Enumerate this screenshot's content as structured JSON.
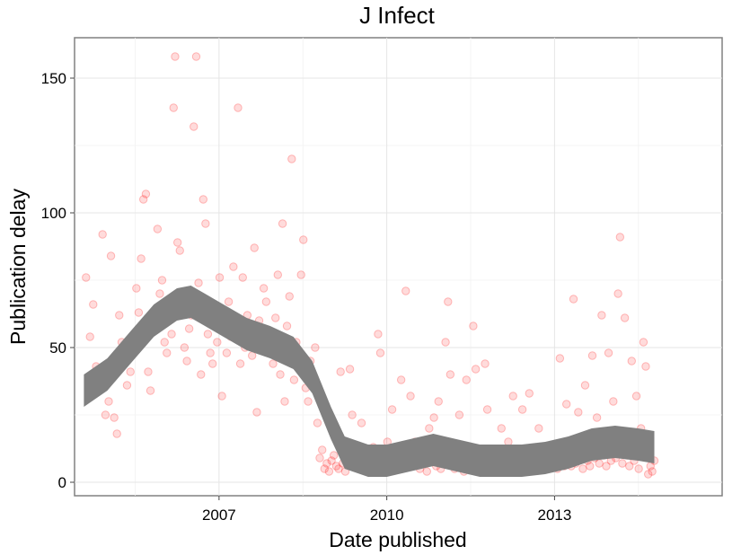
{
  "chart_data": {
    "type": "scatter",
    "title": "J Infect",
    "xlabel": "Date published",
    "ylabel": "Publication delay",
    "xlim": [
      "2004-06-01",
      "2016-01-01"
    ],
    "ylim": [
      -5,
      165
    ],
    "x_ticks": [
      {
        "label": "2007",
        "value": "2007-01-01"
      },
      {
        "label": "2010",
        "value": "2010-01-01"
      },
      {
        "label": "2013",
        "value": "2013-01-01"
      }
    ],
    "y_ticks": [
      {
        "label": "0",
        "value": 0
      },
      {
        "label": "50",
        "value": 50
      },
      {
        "label": "100",
        "value": 100
      },
      {
        "label": "150",
        "value": 150
      }
    ],
    "grid": true,
    "point_color": "#ff0000",
    "smooth_color": "#808080",
    "points": [
      [
        "2004-08-15",
        76
      ],
      [
        "2004-09-10",
        54
      ],
      [
        "2004-10-01",
        66
      ],
      [
        "2004-10-20",
        43
      ],
      [
        "2004-11-10",
        38
      ],
      [
        "2004-12-01",
        92
      ],
      [
        "2004-12-20",
        25
      ],
      [
        "2005-01-10",
        30
      ],
      [
        "2005-01-25",
        84
      ],
      [
        "2005-02-15",
        24
      ],
      [
        "2005-03-05",
        18
      ],
      [
        "2005-03-20",
        62
      ],
      [
        "2005-04-05",
        52
      ],
      [
        "2005-04-20",
        45
      ],
      [
        "2005-05-10",
        36
      ],
      [
        "2005-06-01",
        41
      ],
      [
        "2005-06-20",
        50
      ],
      [
        "2005-07-10",
        72
      ],
      [
        "2005-07-25",
        63
      ],
      [
        "2005-08-10",
        83
      ],
      [
        "2005-08-25",
        105
      ],
      [
        "2005-09-10",
        107
      ],
      [
        "2005-09-25",
        41
      ],
      [
        "2005-10-10",
        34
      ],
      [
        "2005-10-25",
        56
      ],
      [
        "2005-11-10",
        62
      ],
      [
        "2005-11-25",
        94
      ],
      [
        "2005-12-10",
        70
      ],
      [
        "2005-12-25",
        75
      ],
      [
        "2006-01-10",
        52
      ],
      [
        "2006-01-25",
        48
      ],
      [
        "2006-02-10",
        60
      ],
      [
        "2006-02-25",
        55
      ],
      [
        "2006-03-10",
        139
      ],
      [
        "2006-03-20",
        158
      ],
      [
        "2006-04-05",
        89
      ],
      [
        "2006-04-20",
        86
      ],
      [
        "2006-05-05",
        65
      ],
      [
        "2006-05-20",
        50
      ],
      [
        "2006-06-05",
        45
      ],
      [
        "2006-06-20",
        57
      ],
      [
        "2006-07-05",
        62
      ],
      [
        "2006-07-20",
        132
      ],
      [
        "2006-08-05",
        158
      ],
      [
        "2006-08-20",
        74
      ],
      [
        "2006-09-05",
        40
      ],
      [
        "2006-09-20",
        105
      ],
      [
        "2006-10-05",
        96
      ],
      [
        "2006-10-20",
        55
      ],
      [
        "2006-11-05",
        48
      ],
      [
        "2006-11-20",
        44
      ],
      [
        "2006-12-05",
        60
      ],
      [
        "2006-12-20",
        52
      ],
      [
        "2007-01-05",
        76
      ],
      [
        "2007-01-20",
        32
      ],
      [
        "2007-02-05",
        60
      ],
      [
        "2007-02-20",
        48
      ],
      [
        "2007-03-05",
        67
      ],
      [
        "2007-03-20",
        54
      ],
      [
        "2007-04-05",
        80
      ],
      [
        "2007-04-20",
        57
      ],
      [
        "2007-05-05",
        139
      ],
      [
        "2007-05-20",
        44
      ],
      [
        "2007-06-05",
        76
      ],
      [
        "2007-06-20",
        50
      ],
      [
        "2007-07-05",
        62
      ],
      [
        "2007-07-20",
        58
      ],
      [
        "2007-08-05",
        47
      ],
      [
        "2007-08-20",
        87
      ],
      [
        "2007-09-05",
        26
      ],
      [
        "2007-09-20",
        60
      ],
      [
        "2007-10-05",
        55
      ],
      [
        "2007-10-20",
        72
      ],
      [
        "2007-11-05",
        67
      ],
      [
        "2007-11-20",
        49
      ],
      [
        "2007-12-05",
        52
      ],
      [
        "2007-12-20",
        44
      ],
      [
        "2008-01-05",
        61
      ],
      [
        "2008-01-20",
        77
      ],
      [
        "2008-02-05",
        40
      ],
      [
        "2008-02-20",
        96
      ],
      [
        "2008-03-05",
        30
      ],
      [
        "2008-03-20",
        58
      ],
      [
        "2008-04-05",
        69
      ],
      [
        "2008-04-20",
        120
      ],
      [
        "2008-05-05",
        38
      ],
      [
        "2008-05-20",
        52
      ],
      [
        "2008-06-05",
        48
      ],
      [
        "2008-06-20",
        77
      ],
      [
        "2008-07-05",
        90
      ],
      [
        "2008-07-20",
        35
      ],
      [
        "2008-08-05",
        30
      ],
      [
        "2008-08-20",
        45
      ],
      [
        "2008-09-05",
        38
      ],
      [
        "2008-09-20",
        50
      ],
      [
        "2008-10-05",
        22
      ],
      [
        "2008-10-20",
        9
      ],
      [
        "2008-11-05",
        12
      ],
      [
        "2008-11-20",
        5
      ],
      [
        "2008-12-05",
        7
      ],
      [
        "2008-12-20",
        4
      ],
      [
        "2009-01-05",
        8
      ],
      [
        "2009-01-20",
        10
      ],
      [
        "2009-02-05",
        6
      ],
      [
        "2009-02-20",
        5
      ],
      [
        "2009-03-05",
        41
      ],
      [
        "2009-03-20",
        7
      ],
      [
        "2009-04-05",
        4
      ],
      [
        "2009-04-20",
        9
      ],
      [
        "2009-05-05",
        42
      ],
      [
        "2009-05-20",
        25
      ],
      [
        "2009-06-05",
        6
      ],
      [
        "2009-06-20",
        8
      ],
      [
        "2009-07-05",
        5
      ],
      [
        "2009-07-20",
        22
      ],
      [
        "2009-08-05",
        10
      ],
      [
        "2009-08-20",
        12
      ],
      [
        "2009-09-05",
        8
      ],
      [
        "2009-09-20",
        6
      ],
      [
        "2009-10-05",
        13
      ],
      [
        "2009-10-20",
        5
      ],
      [
        "2009-11-05",
        55
      ],
      [
        "2009-11-20",
        48
      ],
      [
        "2009-12-05",
        7
      ],
      [
        "2009-12-20",
        10
      ],
      [
        "2010-01-05",
        15
      ],
      [
        "2010-01-20",
        6
      ],
      [
        "2010-02-05",
        27
      ],
      [
        "2010-02-20",
        8
      ],
      [
        "2010-03-05",
        5
      ],
      [
        "2010-03-20",
        12
      ],
      [
        "2010-04-05",
        38
      ],
      [
        "2010-04-20",
        7
      ],
      [
        "2010-05-05",
        71
      ],
      [
        "2010-05-20",
        9
      ],
      [
        "2010-06-05",
        32
      ],
      [
        "2010-06-20",
        6
      ],
      [
        "2010-07-05",
        15
      ],
      [
        "2010-07-20",
        8
      ],
      [
        "2010-08-05",
        5
      ],
      [
        "2010-08-20",
        11
      ],
      [
        "2010-09-05",
        7
      ],
      [
        "2010-09-20",
        4
      ],
      [
        "2010-10-05",
        20
      ],
      [
        "2010-10-20",
        8
      ],
      [
        "2010-11-05",
        24
      ],
      [
        "2010-11-20",
        6
      ],
      [
        "2010-12-05",
        30
      ],
      [
        "2010-12-20",
        5
      ],
      [
        "2011-01-05",
        9
      ],
      [
        "2011-01-20",
        52
      ],
      [
        "2011-02-05",
        67
      ],
      [
        "2011-02-20",
        40
      ],
      [
        "2011-03-05",
        7
      ],
      [
        "2011-03-20",
        5
      ],
      [
        "2011-04-05",
        8
      ],
      [
        "2011-04-20",
        25
      ],
      [
        "2011-05-05",
        6
      ],
      [
        "2011-05-20",
        4
      ],
      [
        "2011-06-05",
        38
      ],
      [
        "2011-06-20",
        9
      ],
      [
        "2011-07-05",
        5
      ],
      [
        "2011-07-20",
        58
      ],
      [
        "2011-08-05",
        42
      ],
      [
        "2011-08-20",
        7
      ],
      [
        "2011-09-05",
        4
      ],
      [
        "2011-09-20",
        6
      ],
      [
        "2011-10-05",
        44
      ],
      [
        "2011-10-20",
        27
      ],
      [
        "2011-11-05",
        5
      ],
      [
        "2011-11-20",
        8
      ],
      [
        "2011-12-05",
        4
      ],
      [
        "2011-12-20",
        10
      ],
      [
        "2012-01-05",
        6
      ],
      [
        "2012-01-20",
        20
      ],
      [
        "2012-02-05",
        7
      ],
      [
        "2012-02-20",
        5
      ],
      [
        "2012-03-05",
        15
      ],
      [
        "2012-03-20",
        4
      ],
      [
        "2012-04-05",
        32
      ],
      [
        "2012-04-20",
        9
      ],
      [
        "2012-05-05",
        5
      ],
      [
        "2012-05-20",
        7
      ],
      [
        "2012-06-05",
        27
      ],
      [
        "2012-06-20",
        6
      ],
      [
        "2012-07-05",
        4
      ],
      [
        "2012-07-20",
        33
      ],
      [
        "2012-08-05",
        8
      ],
      [
        "2012-08-20",
        5
      ],
      [
        "2012-09-05",
        7
      ],
      [
        "2012-09-20",
        20
      ],
      [
        "2012-10-05",
        6
      ],
      [
        "2012-10-20",
        10
      ],
      [
        "2012-11-05",
        5
      ],
      [
        "2012-11-20",
        8
      ],
      [
        "2012-12-05",
        6
      ],
      [
        "2012-12-20",
        12
      ],
      [
        "2013-01-05",
        7
      ],
      [
        "2013-01-20",
        5
      ],
      [
        "2013-02-05",
        46
      ],
      [
        "2013-02-20",
        8
      ],
      [
        "2013-03-05",
        6
      ],
      [
        "2013-03-20",
        29
      ],
      [
        "2013-04-05",
        9
      ],
      [
        "2013-04-20",
        6
      ],
      [
        "2013-05-05",
        68
      ],
      [
        "2013-05-20",
        7
      ],
      [
        "2013-06-05",
        26
      ],
      [
        "2013-06-20",
        10
      ],
      [
        "2013-07-05",
        5
      ],
      [
        "2013-07-20",
        36
      ],
      [
        "2013-08-05",
        8
      ],
      [
        "2013-08-20",
        6
      ],
      [
        "2013-09-05",
        47
      ],
      [
        "2013-09-20",
        9
      ],
      [
        "2013-10-05",
        24
      ],
      [
        "2013-10-20",
        7
      ],
      [
        "2013-11-05",
        62
      ],
      [
        "2013-11-20",
        10
      ],
      [
        "2013-12-05",
        6
      ],
      [
        "2013-12-20",
        48
      ],
      [
        "2014-01-05",
        8
      ],
      [
        "2014-01-20",
        30
      ],
      [
        "2014-02-05",
        9
      ],
      [
        "2014-02-20",
        70
      ],
      [
        "2014-03-05",
        91
      ],
      [
        "2014-03-20",
        7
      ],
      [
        "2014-04-05",
        61
      ],
      [
        "2014-04-20",
        10
      ],
      [
        "2014-05-05",
        6
      ],
      [
        "2014-05-20",
        45
      ],
      [
        "2014-06-05",
        8
      ],
      [
        "2014-06-20",
        32
      ],
      [
        "2014-07-05",
        5
      ],
      [
        "2014-07-20",
        20
      ],
      [
        "2014-08-05",
        52
      ],
      [
        "2014-08-20",
        43
      ],
      [
        "2014-09-05",
        3
      ],
      [
        "2014-09-20",
        6
      ],
      [
        "2014-10-01",
        4
      ],
      [
        "2014-10-15",
        8
      ]
    ],
    "smooth": [
      [
        "2004-08-01",
        34
      ],
      [
        "2005-01-01",
        40
      ],
      [
        "2005-06-01",
        50
      ],
      [
        "2005-11-01",
        60
      ],
      [
        "2006-04-01",
        66
      ],
      [
        "2006-07-01",
        67
      ],
      [
        "2006-10-01",
        64
      ],
      [
        "2007-03-01",
        59
      ],
      [
        "2007-07-01",
        55
      ],
      [
        "2007-12-01",
        52
      ],
      [
        "2008-05-01",
        48
      ],
      [
        "2008-09-01",
        39
      ],
      [
        "2009-01-01",
        22
      ],
      [
        "2009-04-01",
        11
      ],
      [
        "2009-09-01",
        8
      ],
      [
        "2010-01-01",
        8
      ],
      [
        "2010-06-01",
        10
      ],
      [
        "2010-11-01",
        12
      ],
      [
        "2011-04-01",
        10
      ],
      [
        "2011-09-01",
        8
      ],
      [
        "2012-01-01",
        8
      ],
      [
        "2012-06-01",
        8
      ],
      [
        "2012-11-01",
        9
      ],
      [
        "2013-04-01",
        11
      ],
      [
        "2013-09-01",
        14
      ],
      [
        "2014-02-01",
        15
      ],
      [
        "2014-07-01",
        14
      ],
      [
        "2014-10-15",
        13
      ]
    ],
    "smooth_band": 6
  }
}
